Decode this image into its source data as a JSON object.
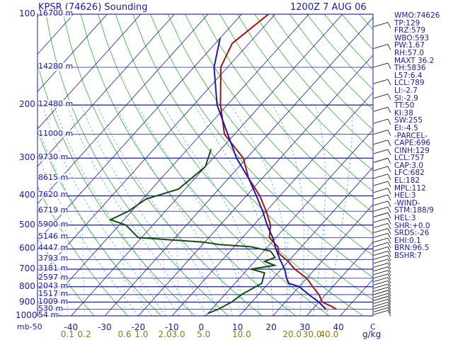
{
  "header": {
    "title": "KPSR (74626) Sounding",
    "datetime": "1200Z  7 AUG 06"
  },
  "indices": [
    "WMO:74626",
    "TP:129",
    "FRZ:579",
    "WBO:593",
    "PW:1.67",
    "RH:57.0",
    "MAXT 36.2",
    "TH:5836",
    "L57:6.4",
    "LCL:789",
    "LI:-2.7",
    "SI:-2.9",
    "TT:50",
    "KI:38",
    "SW:255",
    "EI:-4.5",
    "-PARCEL-",
    "CAPE:696",
    "CINH:129",
    "LCL:757",
    "CAP:3.0",
    "LFC:682",
    "EL:182",
    "MPL:112",
    "HEL:3",
    "-WIND-",
    "STM:188/9",
    "HEL:3",
    "SHR:+0.0",
    "SRDS:-26",
    "EHI:0.1",
    "BRN:96.5",
    "BSHR:7"
  ],
  "chart_data": {
    "type": "skew-t",
    "title": "KPSR (74626) Sounding",
    "pressure_ticks": [
      "100",
      "200",
      "300",
      "400",
      "500",
      "600",
      "700",
      "800",
      "900",
      "1000"
    ],
    "pressure_tick_values": [
      100,
      200,
      300,
      400,
      500,
      600,
      700,
      800,
      900,
      1000
    ],
    "height_labels": [
      {
        "p": 100,
        "label": "16700 m"
      },
      {
        "p": 150,
        "label": "14280 m"
      },
      {
        "p": 200,
        "label": "12480 m"
      },
      {
        "p": 250,
        "label": "11000 m"
      },
      {
        "p": 300,
        "label": "9730 m"
      },
      {
        "p": 350,
        "label": "8615 m"
      },
      {
        "p": 400,
        "label": "7620 m"
      },
      {
        "p": 450,
        "label": "6719 m"
      },
      {
        "p": 500,
        "label": "5900 m"
      },
      {
        "p": 550,
        "label": "5146 m"
      },
      {
        "p": 600,
        "label": "4447 m"
      },
      {
        "p": 650,
        "label": "3793 m"
      },
      {
        "p": 700,
        "label": "3181 m"
      },
      {
        "p": 750,
        "label": "2597 m"
      },
      {
        "p": 800,
        "label": "2043 m"
      },
      {
        "p": 850,
        "label": "1517 m"
      },
      {
        "p": 900,
        "label": "1009 m"
      },
      {
        "p": 950,
        "label": "530 m"
      },
      {
        "p": 1000,
        "label": "54 m"
      }
    ],
    "temp_ticks": [
      "-40",
      "-30",
      "-20",
      "-10",
      "0",
      "10",
      "20",
      "30",
      "40"
    ],
    "temp_tick_values": [
      -40,
      -30,
      -20,
      -10,
      0,
      10,
      20,
      30,
      40
    ],
    "mixing_ratio_ticks": [
      "0.1",
      "0.2",
      "0.6",
      "1.0",
      "2.0",
      "3.0",
      "5.0",
      "10.0",
      "20.0",
      "30.0",
      "40.0"
    ],
    "mixing_ratio_positions_degC": [
      -41,
      -36,
      -24,
      -19,
      -12,
      -8,
      -0.5,
      10,
      25,
      31,
      36
    ],
    "x_min_label": "mb-50",
    "xunit": "g/kg",
    "xlabel_c": "C",
    "series": [
      {
        "role": "temperature",
        "color": "#aa1111",
        "points": [
          [
            100,
            -62
          ],
          [
            125,
            -65
          ],
          [
            150,
            -62
          ],
          [
            200,
            -52
          ],
          [
            250,
            -43
          ],
          [
            300,
            -31
          ],
          [
            350,
            -24
          ],
          [
            400,
            -16
          ],
          [
            450,
            -10
          ],
          [
            500,
            -5
          ],
          [
            550,
            -2
          ],
          [
            590,
            3
          ],
          [
            620,
            5
          ],
          [
            660,
            10
          ],
          [
            700,
            14
          ],
          [
            750,
            20
          ],
          [
            800,
            24
          ],
          [
            850,
            28
          ],
          [
            900,
            31
          ],
          [
            930,
            35
          ],
          [
            950,
            37
          ]
        ]
      },
      {
        "role": "dewpoint",
        "color": "#134d13",
        "points": [
          [
            280,
            -43
          ],
          [
            320,
            -40
          ],
          [
            380,
            -42
          ],
          [
            410,
            -49
          ],
          [
            450,
            -51
          ],
          [
            480,
            -54
          ],
          [
            500,
            -48
          ],
          [
            550,
            -41
          ],
          [
            570,
            -20
          ],
          [
            580,
            -15
          ],
          [
            590,
            -5
          ],
          [
            610,
            2
          ],
          [
            640,
            5
          ],
          [
            660,
            3
          ],
          [
            680,
            7
          ],
          [
            700,
            1
          ],
          [
            720,
            6
          ],
          [
            780,
            8
          ],
          [
            850,
            5
          ],
          [
            900,
            4
          ],
          [
            950,
            2
          ],
          [
            980,
            0
          ]
        ]
      },
      {
        "role": "parcel",
        "color": "#1a1aa6",
        "points": [
          [
            120,
            -70
          ],
          [
            150,
            -64
          ],
          [
            200,
            -53
          ],
          [
            250,
            -42
          ],
          [
            300,
            -33
          ],
          [
            350,
            -24
          ],
          [
            400,
            -17
          ],
          [
            450,
            -11
          ],
          [
            500,
            -6
          ],
          [
            550,
            -1
          ],
          [
            600,
            3
          ],
          [
            650,
            7
          ],
          [
            700,
            11
          ],
          [
            750,
            14
          ],
          [
            780,
            16
          ],
          [
            800,
            20
          ],
          [
            850,
            25
          ],
          [
            900,
            30
          ],
          [
            950,
            34
          ]
        ]
      }
    ]
  }
}
